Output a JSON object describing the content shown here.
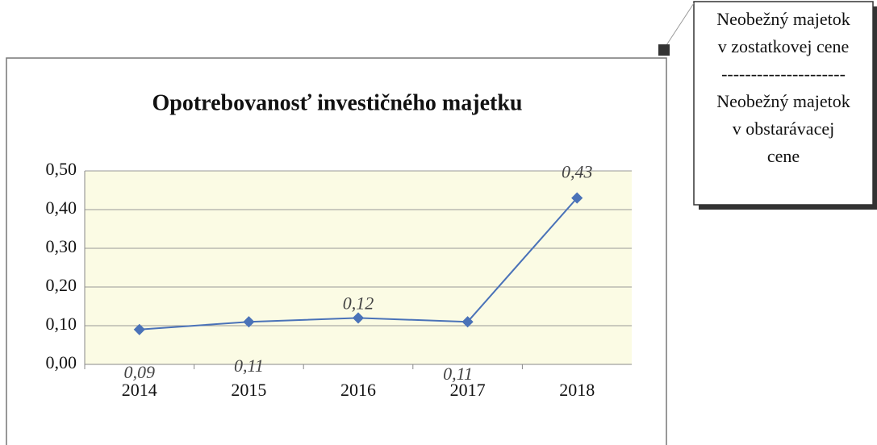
{
  "chart_data": {
    "type": "line",
    "title": "Opotrebovanosť investičného majetku",
    "categories": [
      "2014",
      "2015",
      "2016",
      "2017",
      "2018"
    ],
    "series": [
      {
        "name": "Opotrebovanosť",
        "color": "#4a72b8",
        "values": [
          0.09,
          0.11,
          0.12,
          0.11,
          0.43
        ],
        "value_labels": [
          "0,09",
          "0,11",
          "0,12",
          "0,11",
          "0,43"
        ]
      }
    ],
    "ylim": [
      0,
      0.5
    ],
    "yticks": [
      {
        "value": 0,
        "label": "0,00"
      },
      {
        "value": 0.1,
        "label": "0,10"
      },
      {
        "value": 0.2,
        "label": "0,20"
      },
      {
        "value": 0.3,
        "label": "0,30"
      },
      {
        "value": 0.4,
        "label": "0,40"
      },
      {
        "value": 0.5,
        "label": "0,50"
      }
    ],
    "grid": true,
    "annotation": {
      "lines": [
        "Neobežný majetok",
        "v zostatkovej cene",
        "---------------------",
        "Neobežný majetok",
        "v obstarávacej",
        "cene"
      ]
    }
  }
}
